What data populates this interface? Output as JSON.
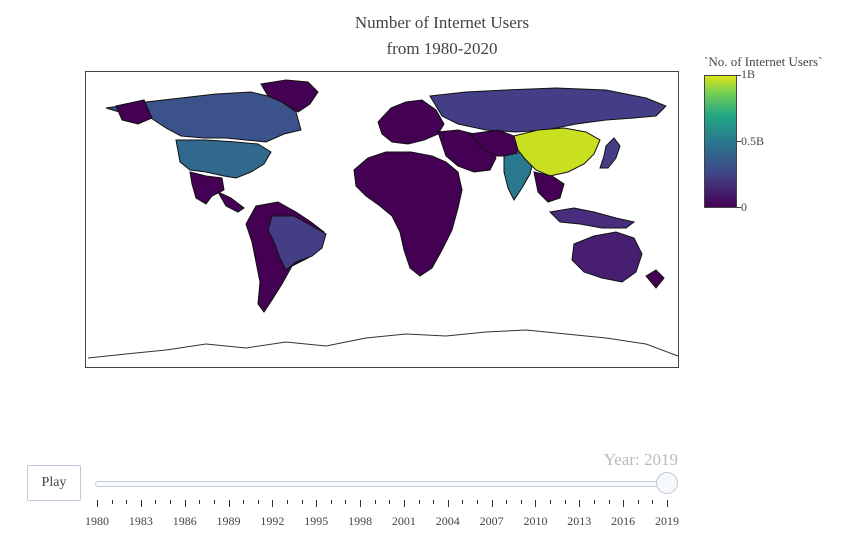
{
  "chart_data": {
    "type": "choropleth",
    "title": "Number of Internet Users",
    "subtitle": "from 1980-2020",
    "colorbar": {
      "title": "`No. of Internet Users`",
      "ticks": [
        "1B",
        "0.5B",
        "0"
      ],
      "range": [
        0,
        1000000000
      ],
      "colorscale": [
        "#440154",
        "#414487",
        "#2a788e",
        "#22a884",
        "#7ad151",
        "#dde318"
      ]
    },
    "year": 2019,
    "regions": [
      {
        "name": "China",
        "value": 900000000,
        "color": "#c8e020"
      },
      {
        "name": "India",
        "value": 420000000,
        "color": "#2a788e"
      },
      {
        "name": "United States",
        "value": 290000000,
        "color": "#31688e"
      },
      {
        "name": "Canada",
        "value": 35000000,
        "color": "#3b528b"
      },
      {
        "name": "Brazil",
        "value": 140000000,
        "color": "#433e85"
      },
      {
        "name": "Russia",
        "value": 118000000,
        "color": "#433e85"
      },
      {
        "name": "Japan",
        "value": 115000000,
        "color": "#433e85"
      },
      {
        "name": "Indonesia",
        "value": 130000000,
        "color": "#472d7b"
      },
      {
        "name": "Australia",
        "value": 22000000,
        "color": "#481f70"
      },
      {
        "name": "Rest of world",
        "value": 10000000,
        "color": "#440154"
      }
    ]
  },
  "controls": {
    "play_label": "Play",
    "year_prefix": "Year: ",
    "year_value": "2019",
    "year_display": "Year: 2019"
  },
  "slider": {
    "years": [
      1980,
      1981,
      1982,
      1983,
      1984,
      1985,
      1986,
      1987,
      1988,
      1989,
      1990,
      1991,
      1992,
      1993,
      1994,
      1995,
      1996,
      1997,
      1998,
      1999,
      2000,
      2001,
      2002,
      2003,
      2004,
      2005,
      2006,
      2007,
      2008,
      2009,
      2010,
      2011,
      2012,
      2013,
      2014,
      2015,
      2016,
      2017,
      2018,
      2019
    ],
    "labels": [
      "1980",
      "1983",
      "1986",
      "1989",
      "1992",
      "1995",
      "1998",
      "2001",
      "2004",
      "2007",
      "2010",
      "2013",
      "2016",
      "2019"
    ],
    "selected": 2019
  }
}
